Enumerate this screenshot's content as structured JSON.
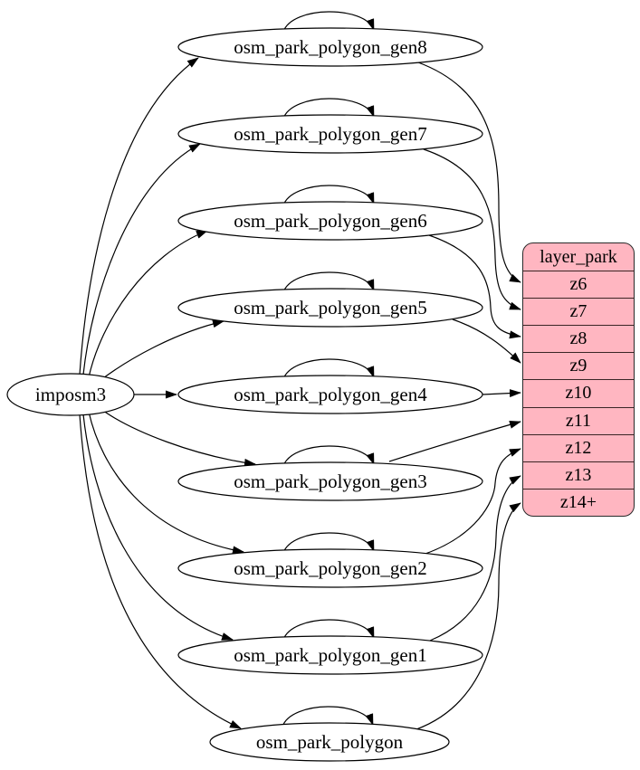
{
  "source_node": {
    "id": "imposm3",
    "label": "imposm3"
  },
  "table_nodes": [
    {
      "id": "osm_park_polygon_gen8",
      "label": "osm_park_polygon_gen8"
    },
    {
      "id": "osm_park_polygon_gen7",
      "label": "osm_park_polygon_gen7"
    },
    {
      "id": "osm_park_polygon_gen6",
      "label": "osm_park_polygon_gen6"
    },
    {
      "id": "osm_park_polygon_gen5",
      "label": "osm_park_polygon_gen5"
    },
    {
      "id": "osm_park_polygon_gen4",
      "label": "osm_park_polygon_gen4"
    },
    {
      "id": "osm_park_polygon_gen3",
      "label": "osm_park_polygon_gen3"
    },
    {
      "id": "osm_park_polygon_gen2",
      "label": "osm_park_polygon_gen2"
    },
    {
      "id": "osm_park_polygon_gen1",
      "label": "osm_park_polygon_gen1"
    },
    {
      "id": "osm_park_polygon",
      "label": "osm_park_polygon"
    }
  ],
  "layer_table": {
    "title": "layer_park",
    "zoom_rows": [
      "z6",
      "z7",
      "z8",
      "z9",
      "z10",
      "z11",
      "z12",
      "z13",
      "z14+"
    ],
    "fill": "#ffb6c1",
    "stroke": "#2a2a2a"
  },
  "edges": [
    {
      "from": "imposm3",
      "to": "osm_park_polygon_gen8"
    },
    {
      "from": "imposm3",
      "to": "osm_park_polygon_gen7"
    },
    {
      "from": "imposm3",
      "to": "osm_park_polygon_gen6"
    },
    {
      "from": "imposm3",
      "to": "osm_park_polygon_gen5"
    },
    {
      "from": "imposm3",
      "to": "osm_park_polygon_gen4"
    },
    {
      "from": "imposm3",
      "to": "osm_park_polygon_gen3"
    },
    {
      "from": "imposm3",
      "to": "osm_park_polygon_gen2"
    },
    {
      "from": "imposm3",
      "to": "osm_park_polygon_gen1"
    },
    {
      "from": "imposm3",
      "to": "osm_park_polygon"
    },
    {
      "from": "osm_park_polygon_gen8",
      "to": "osm_park_polygon_gen8"
    },
    {
      "from": "osm_park_polygon_gen7",
      "to": "osm_park_polygon_gen7"
    },
    {
      "from": "osm_park_polygon_gen6",
      "to": "osm_park_polygon_gen6"
    },
    {
      "from": "osm_park_polygon_gen5",
      "to": "osm_park_polygon_gen5"
    },
    {
      "from": "osm_park_polygon_gen4",
      "to": "osm_park_polygon_gen4"
    },
    {
      "from": "osm_park_polygon_gen3",
      "to": "osm_park_polygon_gen3"
    },
    {
      "from": "osm_park_polygon_gen2",
      "to": "osm_park_polygon_gen2"
    },
    {
      "from": "osm_park_polygon_gen1",
      "to": "osm_park_polygon_gen1"
    },
    {
      "from": "osm_park_polygon",
      "to": "osm_park_polygon"
    },
    {
      "from": "osm_park_polygon_gen8",
      "to": "z6"
    },
    {
      "from": "osm_park_polygon_gen7",
      "to": "z7"
    },
    {
      "from": "osm_park_polygon_gen6",
      "to": "z8"
    },
    {
      "from": "osm_park_polygon_gen5",
      "to": "z9"
    },
    {
      "from": "osm_park_polygon_gen4",
      "to": "z10"
    },
    {
      "from": "osm_park_polygon_gen3",
      "to": "z11"
    },
    {
      "from": "osm_park_polygon_gen2",
      "to": "z12"
    },
    {
      "from": "osm_park_polygon_gen1",
      "to": "z13"
    },
    {
      "from": "osm_park_polygon",
      "to": "z14+"
    }
  ],
  "colors": {
    "background": "#ffffff",
    "edge": "#000000",
    "node_fill": "#ffffff",
    "node_stroke": "#000000",
    "text": "#000000"
  }
}
